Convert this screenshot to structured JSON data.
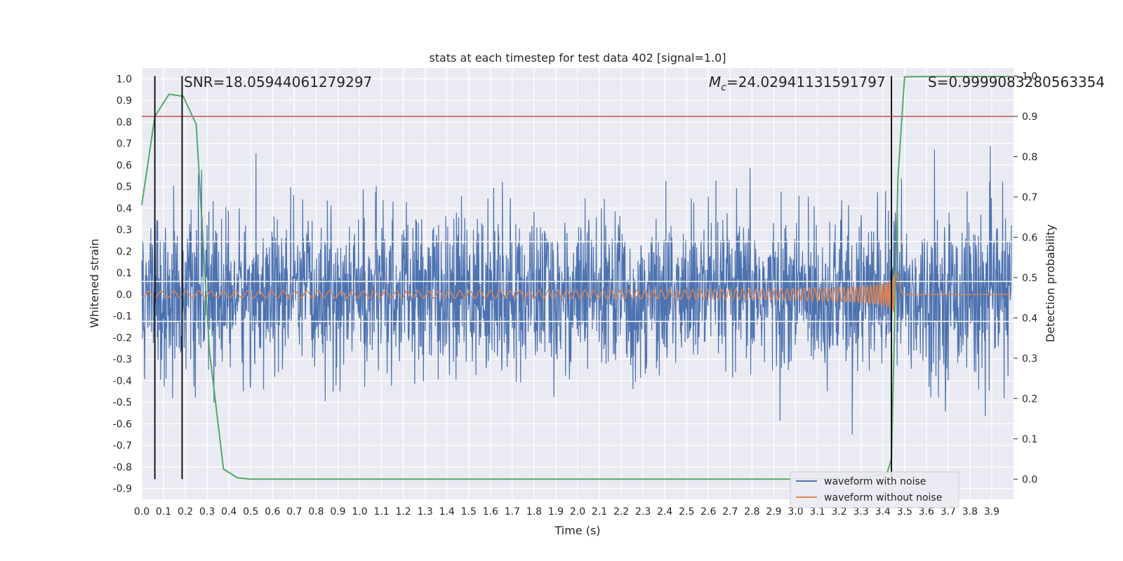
{
  "chart_data": {
    "type": "line",
    "title": "stats at each timestep for test data 402 [signal=1.0]",
    "xlabel": "Time (s)",
    "ylabel_left": "Whitened strain",
    "ylabel_right": "Detection probability",
    "xlim": [
      0.0,
      4.0
    ],
    "ylim_left": [
      -0.95,
      1.05
    ],
    "ylim_right": [
      -0.05,
      1.02
    ],
    "grid": true,
    "x_ticks": [
      "0.0",
      "0.1",
      "0.2",
      "0.3",
      "0.4",
      "0.5",
      "0.6",
      "0.7",
      "0.8",
      "0.9",
      "1.0",
      "1.1",
      "1.2",
      "1.3",
      "1.4",
      "1.5",
      "1.6",
      "1.7",
      "1.8",
      "1.9",
      "2.0",
      "2.1",
      "2.2",
      "2.3",
      "2.4",
      "2.5",
      "2.6",
      "2.7",
      "2.8",
      "2.9",
      "3.0",
      "3.1",
      "3.2",
      "3.3",
      "3.4",
      "3.5",
      "3.6",
      "3.7",
      "3.8",
      "3.9"
    ],
    "y_ticks_left": [
      "1.0",
      "0.9",
      "0.8",
      "0.7",
      "0.6",
      "0.5",
      "0.4",
      "0.3",
      "0.2",
      "0.1",
      "0.0",
      "-0.1",
      "-0.2",
      "-0.3",
      "-0.4",
      "-0.5",
      "-0.6",
      "-0.7",
      "-0.8",
      "-0.9"
    ],
    "y_ticks_right": [
      "1.0",
      "0.9",
      "0.8",
      "0.7",
      "0.6",
      "0.5",
      "0.4",
      "0.3",
      "0.2",
      "0.1",
      "0.0"
    ],
    "annotations": {
      "snr": "SNR=18.05944061279297",
      "mc_symbol": "M",
      "mc_subscript": "c",
      "mc_value": "=24.02941131591797",
      "s": "S=0.9999083280563354"
    },
    "legend_position": "lower-right",
    "series": [
      {
        "name": "waveform with noise",
        "color": "#4c72b0",
        "axis": "left",
        "description_values": {
          "noise_std": 0.18,
          "merger_time": 3.46
        }
      },
      {
        "name": "waveform without noise",
        "color": "#dd8452",
        "axis": "left",
        "description_values": {
          "merger_time": 3.46,
          "final_offset": 0.0
        }
      },
      {
        "name": "",
        "color": "#55a868",
        "axis": "right",
        "x": [
          0.0,
          0.06,
          0.125,
          0.19,
          0.25,
          0.31,
          0.375,
          0.44,
          0.5,
          0.6,
          0.8,
          1.0,
          1.5,
          2.0,
          2.5,
          3.0,
          3.3,
          3.42,
          3.44,
          3.47,
          3.5,
          3.6,
          3.8,
          3.98
        ],
        "y": [
          0.68,
          0.9,
          0.955,
          0.95,
          0.88,
          0.32,
          0.025,
          0.003,
          0.0,
          0.0,
          0.0,
          0.0,
          0.0,
          0.0,
          0.0,
          0.0,
          0.001,
          0.015,
          0.05,
          0.75,
          0.998,
          0.999,
          0.999,
          0.999
        ]
      }
    ],
    "threshold": {
      "axis": "right",
      "value": 0.9,
      "color": "#c44e52"
    },
    "vertical_markers": [
      0.06,
      0.185,
      3.44
    ],
    "white_hlines_left": [
      0.06,
      0.245,
      -0.125
    ],
    "colors": {
      "background": "#eaeaf2",
      "grid": "#ffffff",
      "marker": "#000000"
    }
  },
  "legend": {
    "with_noise": "waveform with noise",
    "without_noise": "waveform without noise"
  }
}
